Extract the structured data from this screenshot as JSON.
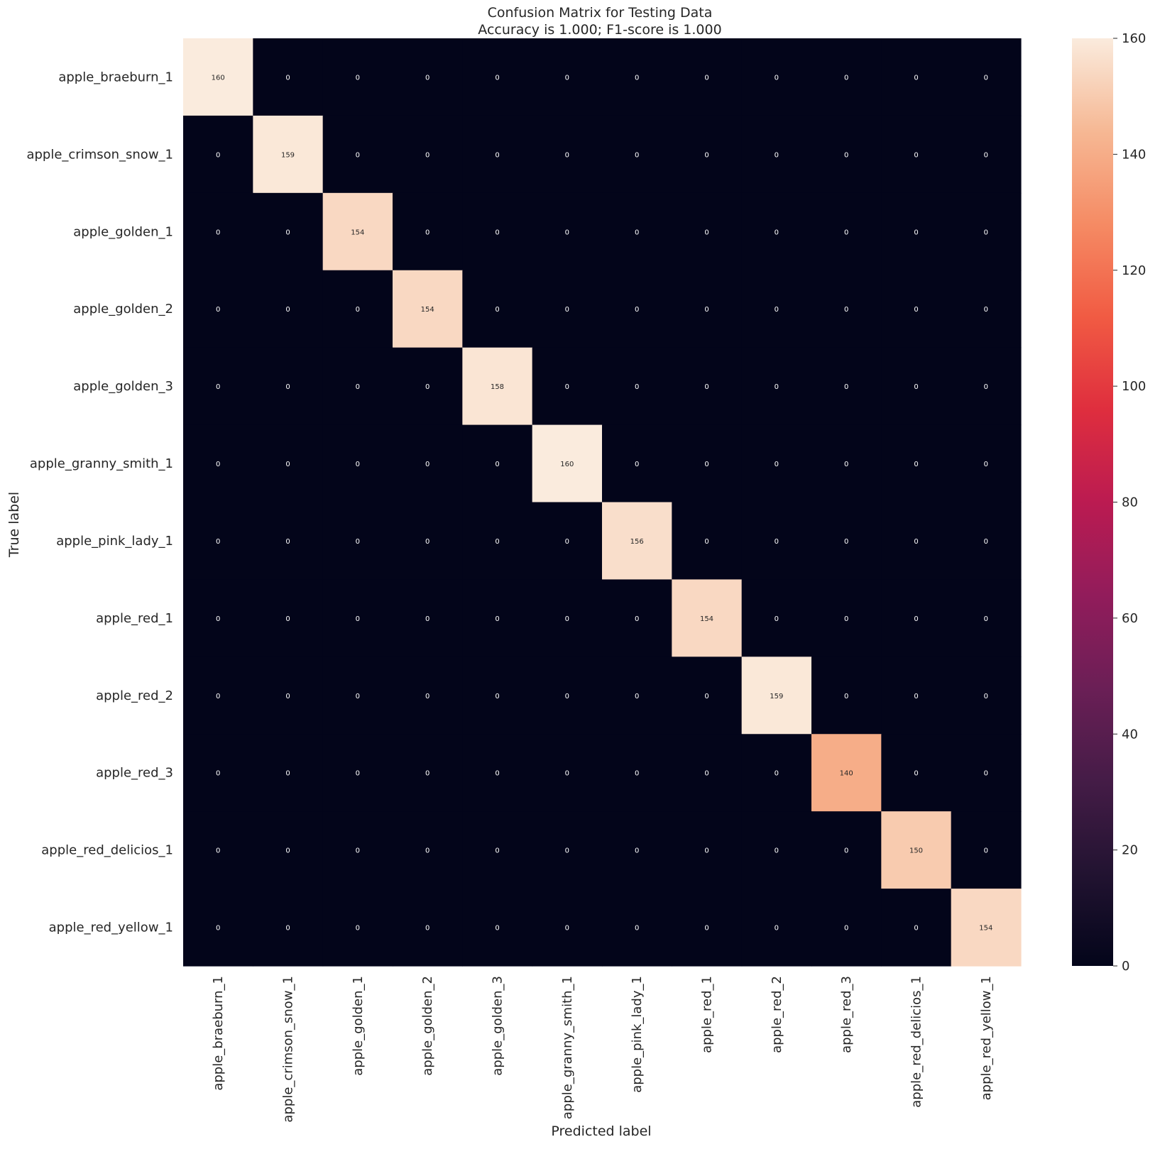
{
  "chart_data": {
    "type": "heatmap",
    "title": "Confusion Matrix for Testing Data",
    "subtitle": "Accuracy is 1.000; F1-score is 1.000",
    "xlabel": "Predicted label",
    "ylabel": "True label",
    "labels": [
      "apple_braeburn_1",
      "apple_crimson_snow_1",
      "apple_golden_1",
      "apple_golden_2",
      "apple_golden_3",
      "apple_granny_smith_1",
      "apple_pink_lady_1",
      "apple_red_1",
      "apple_red_2",
      "apple_red_3",
      "apple_red_delicios_1",
      "apple_red_yellow_1"
    ],
    "matrix": [
      [
        160,
        0,
        0,
        0,
        0,
        0,
        0,
        0,
        0,
        0,
        0,
        0
      ],
      [
        0,
        159,
        0,
        0,
        0,
        0,
        0,
        0,
        0,
        0,
        0,
        0
      ],
      [
        0,
        0,
        154,
        0,
        0,
        0,
        0,
        0,
        0,
        0,
        0,
        0
      ],
      [
        0,
        0,
        0,
        154,
        0,
        0,
        0,
        0,
        0,
        0,
        0,
        0
      ],
      [
        0,
        0,
        0,
        0,
        158,
        0,
        0,
        0,
        0,
        0,
        0,
        0
      ],
      [
        0,
        0,
        0,
        0,
        0,
        160,
        0,
        0,
        0,
        0,
        0,
        0
      ],
      [
        0,
        0,
        0,
        0,
        0,
        0,
        156,
        0,
        0,
        0,
        0,
        0
      ],
      [
        0,
        0,
        0,
        0,
        0,
        0,
        0,
        154,
        0,
        0,
        0,
        0
      ],
      [
        0,
        0,
        0,
        0,
        0,
        0,
        0,
        0,
        159,
        0,
        0,
        0
      ],
      [
        0,
        0,
        0,
        0,
        0,
        0,
        0,
        0,
        0,
        140,
        0,
        0
      ],
      [
        0,
        0,
        0,
        0,
        0,
        0,
        0,
        0,
        0,
        0,
        150,
        0
      ],
      [
        0,
        0,
        0,
        0,
        0,
        0,
        0,
        0,
        0,
        0,
        0,
        154
      ]
    ],
    "colorbar": {
      "range": [
        0,
        160
      ],
      "ticks": [
        0,
        20,
        40,
        60,
        80,
        100,
        120,
        140,
        160
      ],
      "colormap": "rocket"
    },
    "grid": false
  }
}
